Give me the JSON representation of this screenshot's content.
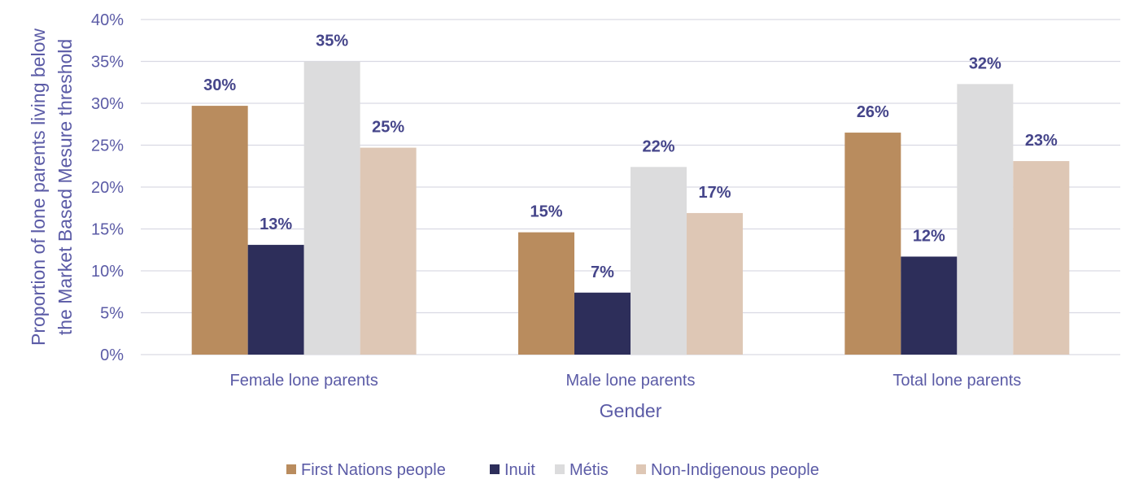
{
  "chart_data": {
    "type": "bar",
    "title": "",
    "xlabel": "Gender",
    "ylabel_lines": [
      "Proportion of lone parents living below",
      "the Market Based Mesure threshold"
    ],
    "ylim": [
      0,
      40
    ],
    "yticks": [
      0,
      5,
      10,
      15,
      20,
      25,
      30,
      35,
      40
    ],
    "ytick_labels": [
      "0%",
      "5%",
      "10%",
      "15%",
      "20%",
      "25%",
      "30%",
      "35%",
      "40%"
    ],
    "grid": true,
    "legend_position": "bottom",
    "categories": [
      "Female lone parents",
      "Male lone parents",
      "Total lone parents"
    ],
    "series": [
      {
        "name": "First Nations people",
        "color": "#B98C5E",
        "values": [
          29.7,
          14.6,
          26.5
        ],
        "labels": [
          "30%",
          "15%",
          "26%"
        ]
      },
      {
        "name": "Inuit",
        "color": "#2D2E5A",
        "values": [
          13.1,
          7.4,
          11.7
        ],
        "labels": [
          "13%",
          "7%",
          "12%"
        ]
      },
      {
        "name": "Métis",
        "color": "#DCDCDD",
        "values": [
          35.0,
          22.4,
          32.3
        ],
        "labels": [
          "35%",
          "22%",
          "32%"
        ]
      },
      {
        "name": "Non-Indigenous people",
        "color": "#DEC7B5",
        "values": [
          24.7,
          16.9,
          23.1
        ],
        "labels": [
          "25%",
          "17%",
          "23%"
        ]
      }
    ],
    "colors": {
      "text": "#5B5BA6",
      "data_label": "#45458A",
      "grid": "#D9D9E3"
    }
  }
}
